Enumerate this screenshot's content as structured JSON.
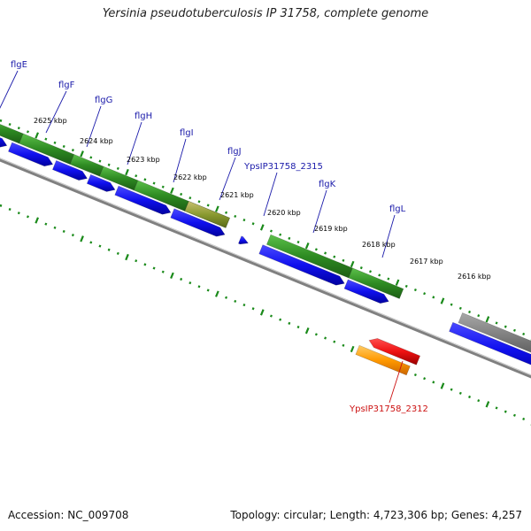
{
  "title": "Yersinia pseudotuberculosis IP 31758, complete genome",
  "footer": {
    "accession": "Accession: NC_009708",
    "topology": "Topology: circular; Length: 4,723,306 bp; Genes: 4,257"
  },
  "colors": {
    "background": "#ffffff",
    "cds_forward_green": "#2e8b22",
    "cds_strand_blue": "#1010ee",
    "gene_label_blue": "#1a1aaa",
    "gene_label_red": "#cc1111",
    "backbone_gray": "#808080",
    "tick_green": "#1a8a1a",
    "highlight_red": "#ee1111",
    "highlight_orange": "#ff9900",
    "gray_feature": "#777777"
  },
  "kbp_labels": [
    "2625 kbp",
    "2624 kbp",
    "2623 kbp",
    "2622 kbp",
    "2621 kbp",
    "2620 kbp",
    "2619 kbp",
    "2618 kbp",
    "2617 kbp",
    "2616 kbp"
  ],
  "gene_labels": [
    "flgE",
    "flgF",
    "flgG",
    "flgH",
    "flgI",
    "flgJ",
    "YpsIP31758_2315",
    "flgK",
    "flgL",
    "YpsIP31758_2312"
  ]
}
